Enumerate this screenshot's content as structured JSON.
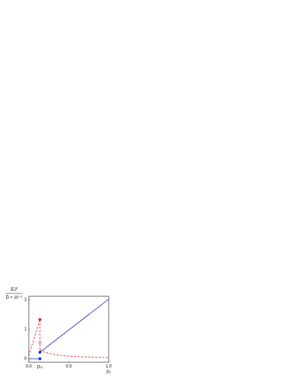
{
  "chart_data": {
    "type": "line",
    "y_label_top": "|ξ̄₁|²",
    "y_label_bottom": "D̄ × 10⁻¹",
    "x_label": "Dₛ",
    "annotation": "Dₜₕ",
    "annotation_x": 0.14,
    "xlim": [
      0,
      1.0
    ],
    "xticks": [
      {
        "value": 0,
        "label": "0.0"
      },
      0.5,
      {
        "value": 1,
        "label": "1.0"
      }
    ],
    "ylim": [
      -0.12,
      2.12
    ],
    "yticks": [
      0,
      1,
      2
    ],
    "series": [
      {
        "color": "#2233cc",
        "dashed": false,
        "x": [
          0,
          0.14
        ],
        "values": [
          0,
          0
        ]
      },
      {
        "color": "#2233cc",
        "dashed": false,
        "x": [
          0.14,
          1.0
        ],
        "values": [
          0.22,
          2.02
        ]
      },
      {
        "color": "#dd2222",
        "dashed": true,
        "x": [
          0,
          0.14
        ],
        "values": [
          0.1,
          1.33
        ]
      },
      {
        "color": "#dd2222",
        "dashed": true,
        "x": [
          0.14,
          0.14
        ],
        "values": [
          1.33,
          0.25
        ]
      },
      {
        "color": "#dd2222",
        "dashed": true,
        "x": [
          0.14,
          0.2,
          0.3,
          0.4,
          0.5,
          0.6,
          0.8,
          1.0
        ],
        "values": [
          0.3,
          0.22,
          0.15,
          0.11,
          0.09,
          0.07,
          0.05,
          0.04
        ]
      }
    ],
    "points": [
      {
        "color": "#dd2222",
        "filled": true,
        "x": 0.14,
        "value": 1.33
      },
      {
        "color": "#dd2222",
        "filled": false,
        "x": 0.14,
        "value": 0.55
      },
      {
        "color": "#2233cc",
        "filled": true,
        "x": 0.14,
        "value": 0
      },
      {
        "color": "#2233cc",
        "filled": true,
        "x": 0.14,
        "value": 0.22
      }
    ]
  }
}
